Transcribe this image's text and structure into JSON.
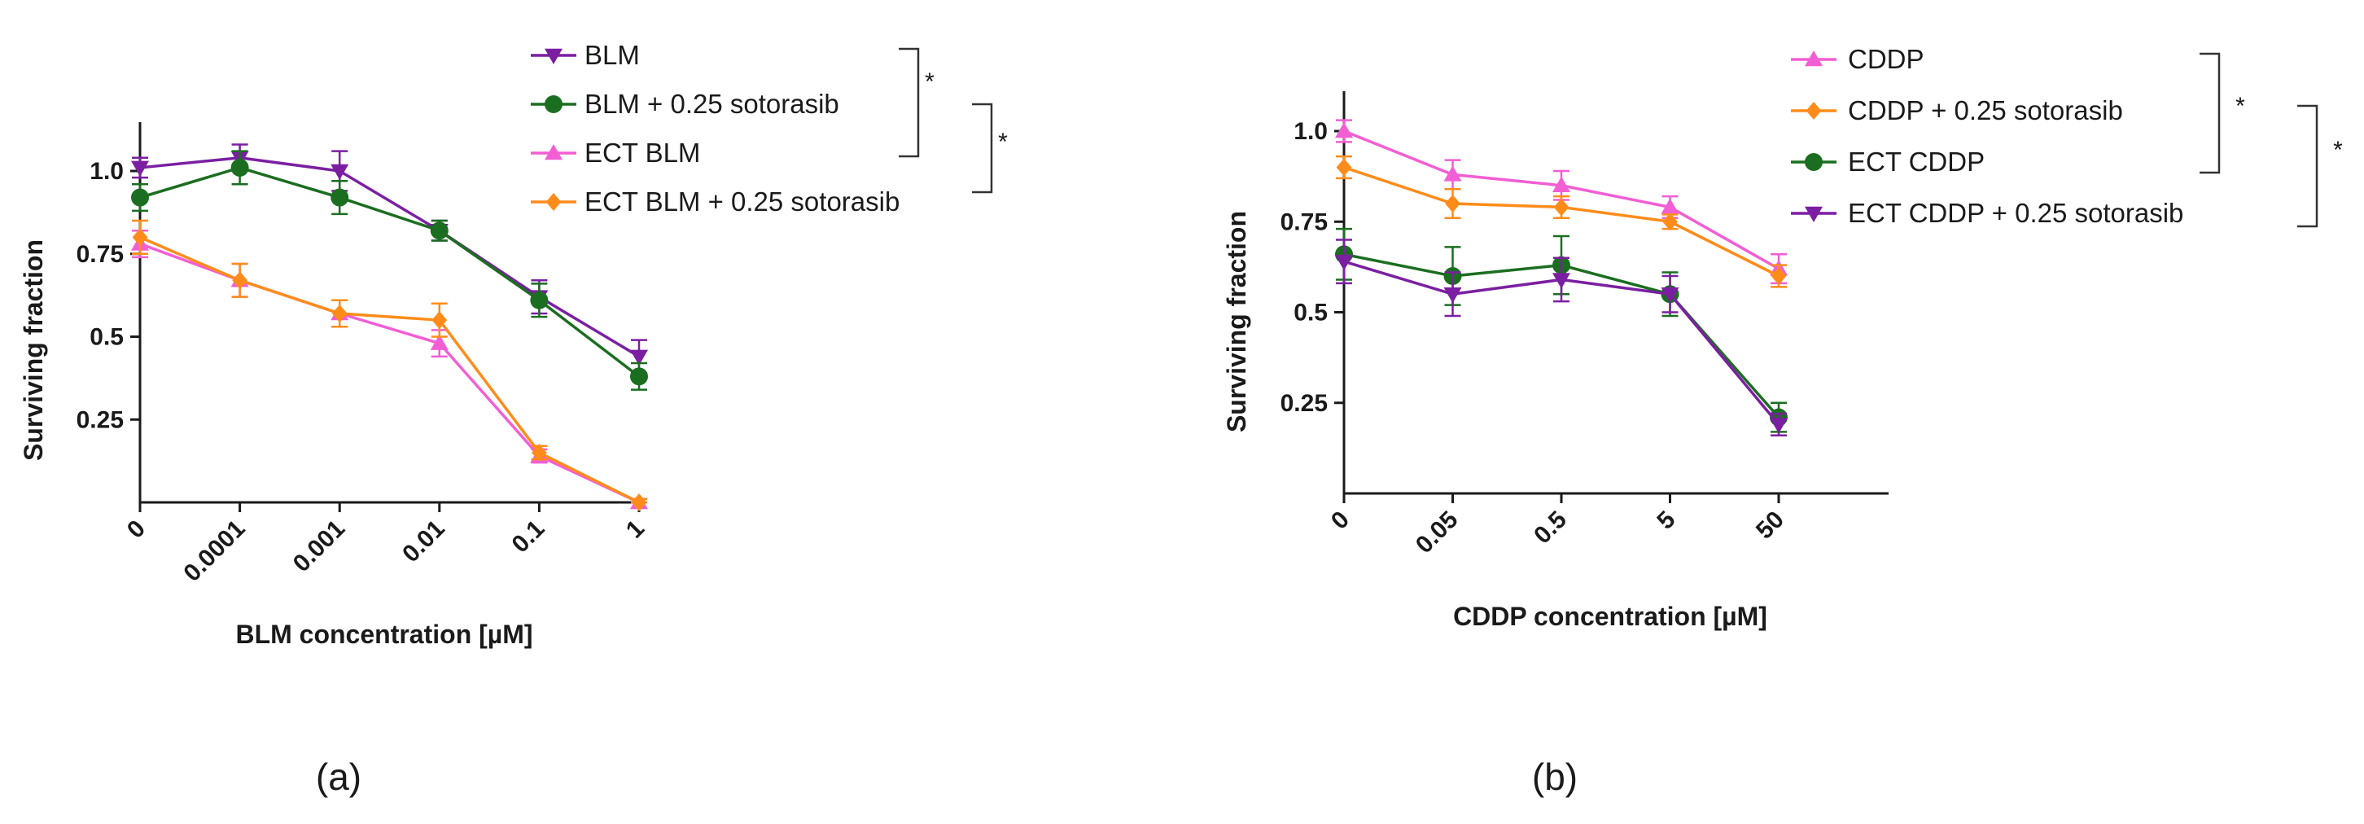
{
  "chart_data": [
    {
      "type": "line",
      "panel_label": "(a)",
      "xlabel": "BLM concentration [µM]",
      "ylabel": "Surviving fraction",
      "categories": [
        "0",
        "0.0001",
        "0.001",
        "0.01",
        "0.1",
        "1"
      ],
      "y_ticks": [
        "0.25",
        "0.5",
        "0.75",
        "1.0"
      ],
      "ylim": [
        0,
        1.1
      ],
      "series": [
        {
          "name": "BLM",
          "marker": "triangle-down",
          "color": "#7b1fa2",
          "values": [
            1.01,
            1.04,
            1.0,
            0.82,
            0.62,
            0.44
          ],
          "errors": [
            0.03,
            0.04,
            0.06,
            0.03,
            0.05,
            0.05
          ]
        },
        {
          "name": "BLM + 0.25 sotorasib",
          "marker": "circle",
          "color": "#1b6e20",
          "values": [
            0.92,
            1.01,
            0.92,
            0.82,
            0.61,
            0.38
          ],
          "errors": [
            0.04,
            0.05,
            0.05,
            0.03,
            0.05,
            0.04
          ]
        },
        {
          "name": "ECT BLM",
          "marker": "triangle-up",
          "color": "#f25ed4",
          "values": [
            0.78,
            0.67,
            0.57,
            0.48,
            0.14,
            0.0
          ],
          "errors": [
            0.04,
            0.05,
            0.04,
            0.04,
            0.02,
            0.01
          ]
        },
        {
          "name": "ECT BLM + 0.25 sotorasib",
          "marker": "diamond",
          "color": "#ff8c1a",
          "values": [
            0.8,
            0.67,
            0.57,
            0.55,
            0.15,
            0.0
          ],
          "errors": [
            0.05,
            0.05,
            0.04,
            0.05,
            0.02,
            0.01
          ]
        }
      ],
      "significance": [
        "*",
        "*"
      ]
    },
    {
      "type": "line",
      "panel_label": "(b)",
      "xlabel": "CDDP concentration [µM]",
      "ylabel": "Surviving fraction",
      "categories": [
        "0",
        "0.05",
        "0.5",
        "5",
        "50"
      ],
      "y_ticks": [
        "0.25",
        "0.5",
        "0.75",
        "1.0"
      ],
      "ylim": [
        0,
        1.1
      ],
      "series": [
        {
          "name": "CDDP",
          "marker": "triangle-up",
          "color": "#f25ed4",
          "values": [
            1.0,
            0.88,
            0.85,
            0.79,
            0.62
          ],
          "errors": [
            0.03,
            0.04,
            0.04,
            0.03,
            0.04
          ]
        },
        {
          "name": "CDDP + 0.25 sotorasib",
          "marker": "diamond",
          "color": "#ff8c1a",
          "values": [
            0.9,
            0.8,
            0.79,
            0.75,
            0.6
          ],
          "errors": [
            0.03,
            0.04,
            0.03,
            0.02,
            0.03
          ]
        },
        {
          "name": "ECT CDDP",
          "marker": "circle",
          "color": "#1b6e20",
          "values": [
            0.66,
            0.6,
            0.63,
            0.55,
            0.21
          ],
          "errors": [
            0.07,
            0.08,
            0.08,
            0.06,
            0.04
          ]
        },
        {
          "name": "ECT CDDP + 0.25 sotorasib",
          "marker": "triangle-down",
          "color": "#7b1fa2",
          "values": [
            0.64,
            0.55,
            0.59,
            0.55,
            0.19
          ],
          "errors": [
            0.06,
            0.06,
            0.06,
            0.05,
            0.03
          ]
        }
      ],
      "significance": [
        "*",
        "*"
      ]
    }
  ]
}
